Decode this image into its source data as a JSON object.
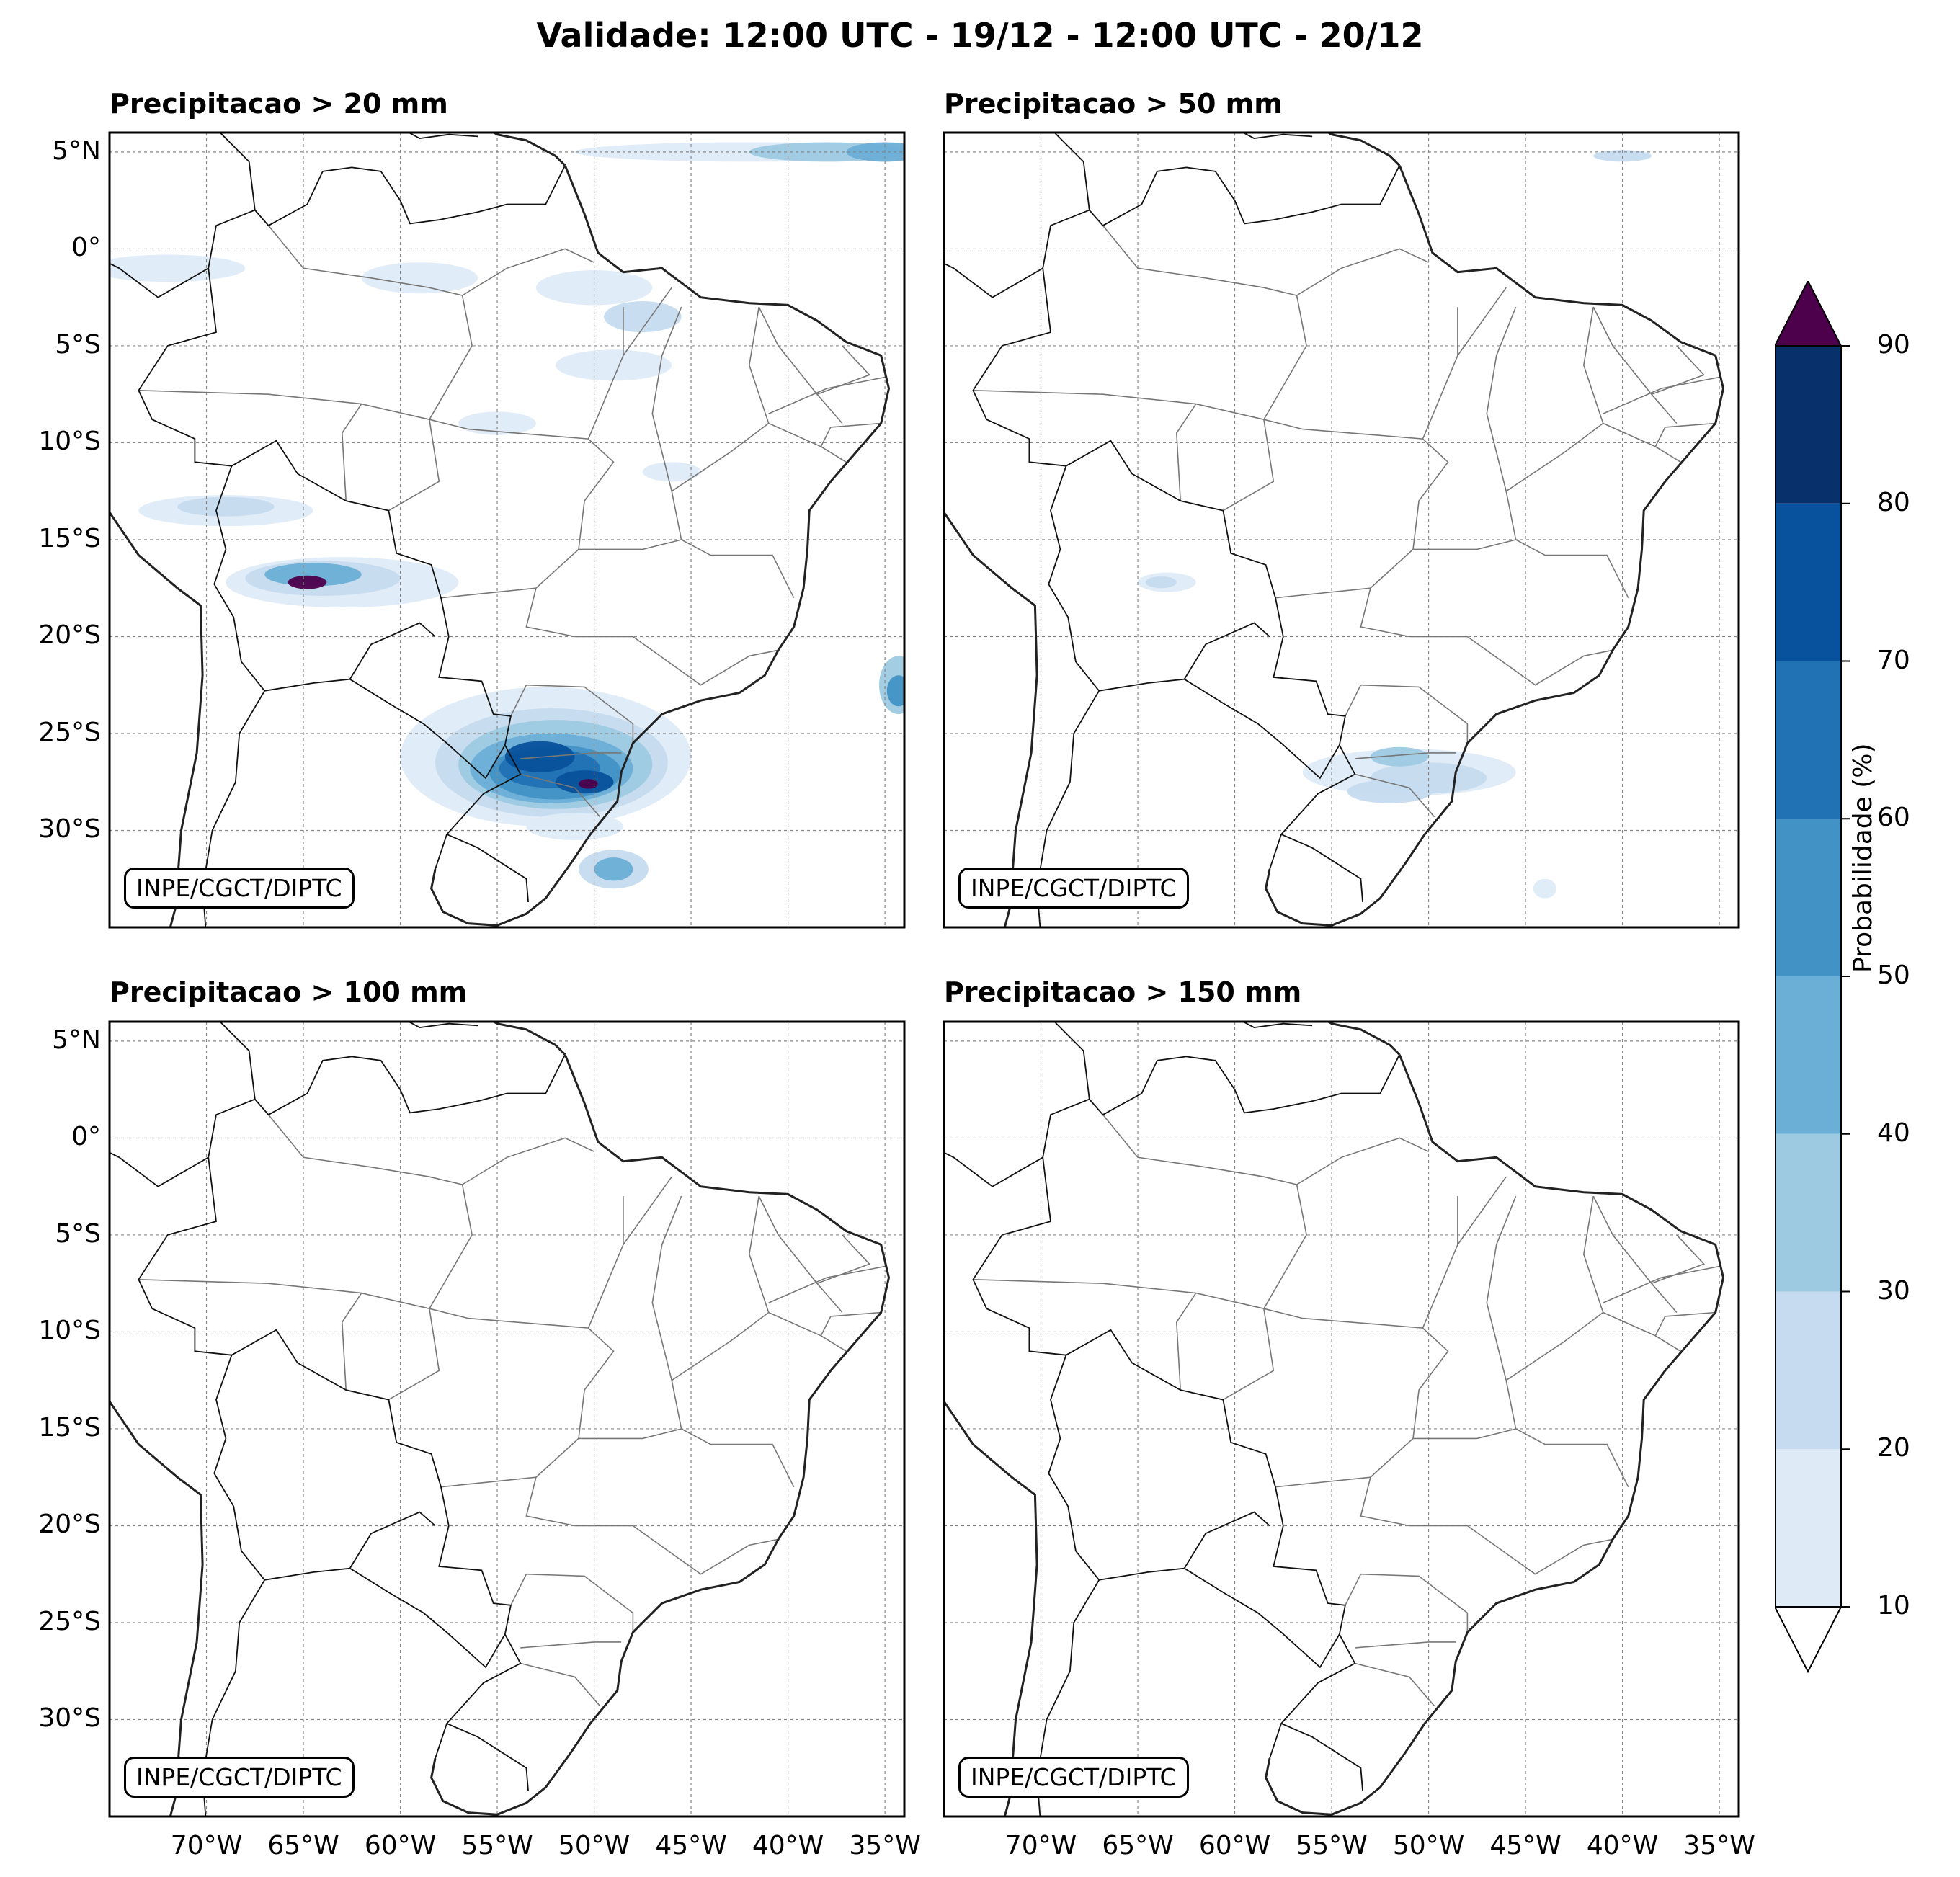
{
  "title": "Validade: 12:00 UTC - 19/12 - 12:00 UTC - 20/12",
  "credit": "INPE/CGCT/DIPTC",
  "panels": [
    {
      "title": "Precipitacao > 20 mm"
    },
    {
      "title": "Precipitacao > 50 mm"
    },
    {
      "title": "Precipitacao > 100 mm"
    },
    {
      "title": "Precipitacao > 150 mm"
    }
  ],
  "lat_ticks": [
    "5°N",
    "0°",
    "5°S",
    "10°S",
    "15°S",
    "20°S",
    "25°S",
    "30°S"
  ],
  "lat_values": [
    5,
    0,
    -5,
    -10,
    -15,
    -20,
    -25,
    -30
  ],
  "lon_ticks": [
    "70°W",
    "65°W",
    "60°W",
    "55°W",
    "50°W",
    "45°W",
    "40°W",
    "35°W"
  ],
  "lon_values": [
    -70,
    -65,
    -60,
    -55,
    -50,
    -45,
    -40,
    -35
  ],
  "extent": {
    "lon": [
      -75,
      -34
    ],
    "lat": [
      -35,
      6
    ]
  },
  "colorbar": {
    "label": "Probabilidade (%)",
    "ticks": [
      "10",
      "20",
      "30",
      "40",
      "50",
      "60",
      "70",
      "80",
      "90"
    ],
    "colors": [
      "#deebf7",
      "#c6dbef",
      "#9ecae1",
      "#6baed6",
      "#4292c6",
      "#2171b5",
      "#08519c",
      "#08306b"
    ],
    "over_color": "#4d004b",
    "under_color": "#ffffff"
  }
}
